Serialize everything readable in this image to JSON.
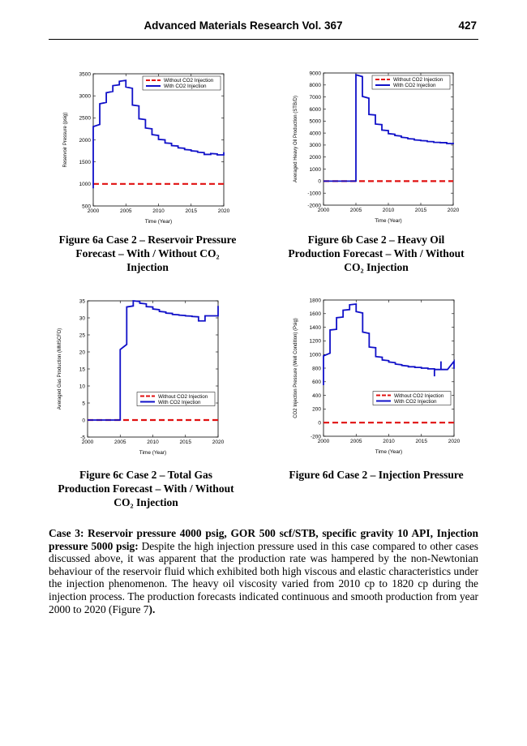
{
  "header": {
    "journal": "Advanced Materials Research Vol. 367",
    "page": "427"
  },
  "captions": {
    "fig6a": "Figure 6a Case 2 – Reservoir Pressure Forecast – With / Without CO₂ Injection",
    "fig6b": "Figure 6b Case 2 – Heavy Oil Production Forecast – With / Without CO₂ Injection",
    "fig6c": "Figure 6c Case 2 – Total Gas Production Forecast – With / Without CO₂ Injection",
    "fig6d": "Figure 6d Case 2 – Injection Pressure"
  },
  "paragraph": {
    "lead": "Case 3: Reservoir pressure 4000 psig, GOR 500 scf/STB, specific gravity 10 API, Injection pressure 5000 psig:",
    "body": " Despite the high injection pressure used in this case compared to other cases discussed above, it was apparent that the production rate was hampered by the non-Newtonian behaviour of the reservoir fluid which exhibited both high viscous and elastic characteristics under the injection phenomenon. The heavy oil viscosity varied from 2010 cp to 1820 cp during the injection process. The production forecasts indicated continuous and smooth production from year 2000 to 2020 (Figure 7",
    "end": ")."
  },
  "colors": {
    "with": "#1010c8",
    "without": "#e01010"
  },
  "chart_data": [
    {
      "id": "6a",
      "type": "line",
      "xlabel": "Time (Year)",
      "ylabel": "Reservoir Pressure (psig)",
      "xlim": [
        2000,
        2020
      ],
      "ylim": [
        500,
        3500
      ],
      "xticks": [
        2000,
        2005,
        2010,
        2015,
        2020
      ],
      "yticks": [
        500,
        1000,
        1500,
        2000,
        2500,
        3000,
        3500
      ],
      "legend": "top-right",
      "series": [
        {
          "name": "Without CO2 Injection",
          "style": "dashed",
          "x": [
            2000,
            2020
          ],
          "y": [
            1000,
            1000
          ]
        },
        {
          "name": "With CO2 Injection",
          "style": "solid",
          "x": [
            2000,
            2000,
            2001,
            2001,
            2002,
            2002,
            2003,
            2003,
            2004,
            2004,
            2005,
            2005,
            2006,
            2006,
            2007,
            2007,
            2008,
            2008,
            2009,
            2009,
            2010,
            2010,
            2011,
            2011,
            2012,
            2012,
            2013,
            2013,
            2014,
            2014,
            2015,
            2015,
            2016,
            2016,
            2017,
            2017,
            2018,
            2018,
            2019,
            2019,
            2020,
            2020
          ],
          "y": [
            900,
            2300,
            2350,
            2820,
            2850,
            3070,
            3100,
            3230,
            3250,
            3330,
            3350,
            3200,
            3170,
            2790,
            2770,
            2480,
            2460,
            2270,
            2250,
            2120,
            2100,
            2010,
            2000,
            1930,
            1920,
            1870,
            1860,
            1820,
            1810,
            1780,
            1770,
            1750,
            1740,
            1720,
            1710,
            1670,
            1670,
            1690,
            1680,
            1660,
            1660,
            1720
          ]
        }
      ]
    },
    {
      "id": "6b",
      "type": "line",
      "xlabel": "Time (Year)",
      "ylabel": "Averaged Heavy Oil Production (STB/D)",
      "xlim": [
        2000,
        2020
      ],
      "ylim": [
        -2000,
        9000
      ],
      "xticks": [
        2000,
        2005,
        2010,
        2015,
        2020
      ],
      "yticks": [
        -2000,
        -1000,
        0,
        1000,
        2000,
        3000,
        4000,
        5000,
        6000,
        7000,
        8000,
        9000
      ],
      "legend": "top-right",
      "series": [
        {
          "name": "Without CO2 Injection",
          "style": "dashed",
          "x": [
            2000,
            2020
          ],
          "y": [
            0,
            0
          ]
        },
        {
          "name": "With CO2 Injection",
          "style": "solid",
          "x": [
            2000,
            2005,
            2005,
            2006,
            2006,
            2007,
            2007,
            2008,
            2008,
            2009,
            2009,
            2010,
            2010,
            2011,
            2011,
            2012,
            2012,
            2013,
            2013,
            2014,
            2014,
            2015,
            2015,
            2016,
            2016,
            2017,
            2017,
            2018,
            2018,
            2019,
            2019,
            2020,
            2020
          ],
          "y": [
            0,
            0,
            8850,
            8700,
            7050,
            6900,
            5550,
            5500,
            4750,
            4700,
            4250,
            4200,
            3950,
            3900,
            3800,
            3750,
            3650,
            3600,
            3530,
            3500,
            3430,
            3400,
            3370,
            3350,
            3300,
            3280,
            3230,
            3220,
            3200,
            3200,
            3130,
            3130,
            3200
          ]
        }
      ]
    },
    {
      "id": "6c",
      "type": "line",
      "xlabel": "Time (Year)",
      "ylabel": "Averaged Gas Production (MMSCFD)",
      "xlim": [
        2000,
        2020
      ],
      "ylim": [
        -5,
        35
      ],
      "xticks": [
        2000,
        2005,
        2010,
        2015,
        2020
      ],
      "yticks": [
        -5,
        0,
        5,
        10,
        15,
        20,
        25,
        30,
        35
      ],
      "legend": "center-right",
      "series": [
        {
          "name": "Without CO2 Injection",
          "style": "dashed",
          "x": [
            2000,
            2020
          ],
          "y": [
            0,
            0
          ]
        },
        {
          "name": "With CO2 Injection",
          "style": "solid",
          "x": [
            2000,
            2005,
            2005,
            2006,
            2006,
            2007,
            2007,
            2008,
            2008,
            2009,
            2009,
            2010,
            2010,
            2011,
            2011,
            2012,
            2012,
            2013,
            2013,
            2014,
            2014,
            2015,
            2015,
            2016,
            2016,
            2017,
            2017,
            2018,
            2018,
            2019,
            2020,
            2020
          ],
          "y": [
            0,
            0,
            20.7,
            22.2,
            33.2,
            33.5,
            35,
            34.8,
            34.3,
            34.1,
            33.3,
            33.2,
            32.6,
            32.4,
            31.9,
            31.7,
            31.4,
            31.3,
            31,
            30.9,
            30.8,
            30.7,
            30.6,
            30.5,
            30.4,
            30.3,
            29.1,
            29.1,
            30.6,
            30.6,
            30.6,
            33.5
          ]
        }
      ]
    },
    {
      "id": "6d",
      "type": "line",
      "xlabel": "Time (Year)",
      "ylabel": "CO2 Injection Pressure (Well Condition) (Psig)",
      "xlim": [
        2000,
        2020
      ],
      "ylim": [
        -200,
        1800
      ],
      "xticks": [
        2000,
        2005,
        2010,
        2015,
        2020
      ],
      "yticks": [
        -200,
        0,
        200,
        400,
        600,
        800,
        1000,
        1200,
        1400,
        1600,
        1800
      ],
      "legend": "center-right",
      "series": [
        {
          "name": "Without CO2 Injection",
          "style": "dashed",
          "x": [
            2000,
            2020
          ],
          "y": [
            0,
            0
          ]
        },
        {
          "name": "With CO2 Injection",
          "style": "solid",
          "x": [
            2000,
            2000,
            2001,
            2001,
            2002,
            2002,
            2003,
            2003,
            2004,
            2004,
            2005,
            2005,
            2006,
            2006,
            2007,
            2007,
            2008,
            2008,
            2009,
            2009,
            2010,
            2010,
            2011,
            2011,
            2012,
            2012,
            2013,
            2013,
            2014,
            2014,
            2015,
            2015,
            2016,
            2016,
            2017,
            2017,
            2017,
            2018,
            2018,
            2018,
            2019,
            2020,
            2020
          ],
          "y": [
            550,
            980,
            1020,
            1360,
            1370,
            1540,
            1550,
            1650,
            1660,
            1730,
            1740,
            1630,
            1610,
            1330,
            1310,
            1110,
            1100,
            970,
            960,
            920,
            910,
            890,
            880,
            860,
            850,
            840,
            830,
            820,
            820,
            810,
            810,
            800,
            800,
            790,
            790,
            680,
            780,
            780,
            900,
            780,
            780,
            900,
            790
          ]
        }
      ]
    }
  ]
}
